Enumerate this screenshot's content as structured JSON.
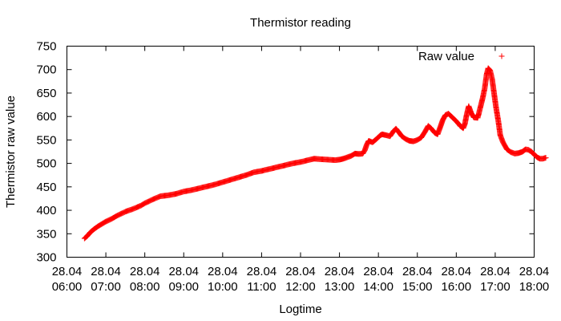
{
  "chart_data": {
    "type": "scatter",
    "title": "Thermistor reading",
    "xlabel": "Logtime",
    "ylabel": "Thermistor raw value",
    "x_unit": "hours of day (28.04)",
    "xlim": [
      6,
      18
    ],
    "ylim": [
      300,
      750
    ],
    "x_ticks": [
      {
        "value": 6,
        "date": "28.04",
        "time": "06:00"
      },
      {
        "value": 7,
        "date": "28.04",
        "time": "07:00"
      },
      {
        "value": 8,
        "date": "28.04",
        "time": "08:00"
      },
      {
        "value": 9,
        "date": "28.04",
        "time": "09:00"
      },
      {
        "value": 10,
        "date": "28.04",
        "time": "10:00"
      },
      {
        "value": 11,
        "date": "28.04",
        "time": "11:00"
      },
      {
        "value": 12,
        "date": "28.04",
        "time": "12:00"
      },
      {
        "value": 13,
        "date": "28.04",
        "time": "13:00"
      },
      {
        "value": 14,
        "date": "28.04",
        "time": "14:00"
      },
      {
        "value": 15,
        "date": "28.04",
        "time": "15:00"
      },
      {
        "value": 16,
        "date": "28.04",
        "time": "16:00"
      },
      {
        "value": 17,
        "date": "28.04",
        "time": "17:00"
      },
      {
        "value": 18,
        "date": "28.04",
        "time": "18:00"
      }
    ],
    "y_ticks": [
      300,
      350,
      400,
      450,
      500,
      550,
      600,
      650,
      700,
      750
    ],
    "grid": false,
    "legend_position": "top-right",
    "marker": "+",
    "color": "#ff0000",
    "series": [
      {
        "name": "Raw value",
        "points": [
          [
            6.45,
            340
          ],
          [
            6.52,
            345
          ],
          [
            6.6,
            353
          ],
          [
            6.7,
            360
          ],
          [
            6.8,
            366
          ],
          [
            6.9,
            371
          ],
          [
            7.0,
            376
          ],
          [
            7.15,
            382
          ],
          [
            7.3,
            389
          ],
          [
            7.5,
            397
          ],
          [
            7.7,
            403
          ],
          [
            7.9,
            410
          ],
          [
            8.0,
            415
          ],
          [
            8.2,
            423
          ],
          [
            8.4,
            430
          ],
          [
            8.6,
            432
          ],
          [
            8.8,
            435
          ],
          [
            9.0,
            440
          ],
          [
            9.2,
            443
          ],
          [
            9.4,
            447
          ],
          [
            9.6,
            451
          ],
          [
            9.8,
            455
          ],
          [
            10.0,
            460
          ],
          [
            10.2,
            465
          ],
          [
            10.4,
            470
          ],
          [
            10.6,
            475
          ],
          [
            10.8,
            481
          ],
          [
            11.0,
            484
          ],
          [
            11.2,
            488
          ],
          [
            11.4,
            492
          ],
          [
            11.6,
            496
          ],
          [
            11.8,
            500
          ],
          [
            12.0,
            503
          ],
          [
            12.2,
            507
          ],
          [
            12.35,
            510
          ],
          [
            12.5,
            509
          ],
          [
            12.7,
            508
          ],
          [
            12.9,
            507
          ],
          [
            13.0,
            508
          ],
          [
            13.1,
            510
          ],
          [
            13.2,
            513
          ],
          [
            13.3,
            516
          ],
          [
            13.4,
            521
          ],
          [
            13.5,
            520
          ],
          [
            13.6,
            521
          ],
          [
            13.65,
            528
          ],
          [
            13.7,
            540
          ],
          [
            13.75,
            548
          ],
          [
            13.85,
            545
          ],
          [
            13.95,
            552
          ],
          [
            14.05,
            560
          ],
          [
            14.1,
            562
          ],
          [
            14.2,
            560
          ],
          [
            14.3,
            558
          ],
          [
            14.38,
            568
          ],
          [
            14.45,
            574
          ],
          [
            14.52,
            567
          ],
          [
            14.6,
            558
          ],
          [
            14.7,
            552
          ],
          [
            14.8,
            548
          ],
          [
            14.9,
            547
          ],
          [
            15.0,
            550
          ],
          [
            15.1,
            555
          ],
          [
            15.2,
            568
          ],
          [
            15.28,
            580
          ],
          [
            15.35,
            575
          ],
          [
            15.45,
            565
          ],
          [
            15.52,
            562
          ],
          [
            15.6,
            580
          ],
          [
            15.65,
            592
          ],
          [
            15.72,
            603
          ],
          [
            15.8,
            606
          ],
          [
            15.9,
            598
          ],
          [
            16.0,
            590
          ],
          [
            16.1,
            580
          ],
          [
            16.18,
            575
          ],
          [
            16.22,
            584
          ],
          [
            16.27,
            605
          ],
          [
            16.32,
            622
          ],
          [
            16.38,
            608
          ],
          [
            16.45,
            598
          ],
          [
            16.55,
            597
          ],
          [
            16.62,
            620
          ],
          [
            16.68,
            640
          ],
          [
            16.73,
            660
          ],
          [
            16.78,
            690
          ],
          [
            16.82,
            703
          ],
          [
            16.87,
            698
          ],
          [
            16.92,
            680
          ],
          [
            16.97,
            650
          ],
          [
            17.02,
            620
          ],
          [
            17.08,
            590
          ],
          [
            17.13,
            560
          ],
          [
            17.2,
            545
          ],
          [
            17.3,
            530
          ],
          [
            17.4,
            524
          ],
          [
            17.5,
            521
          ],
          [
            17.6,
            522
          ],
          [
            17.7,
            525
          ],
          [
            17.78,
            530
          ],
          [
            17.85,
            529
          ],
          [
            17.93,
            525
          ],
          [
            18.0,
            519
          ],
          [
            18.08,
            513
          ],
          [
            18.15,
            510
          ],
          [
            18.22,
            510
          ],
          [
            18.3,
            512
          ]
        ]
      }
    ]
  }
}
